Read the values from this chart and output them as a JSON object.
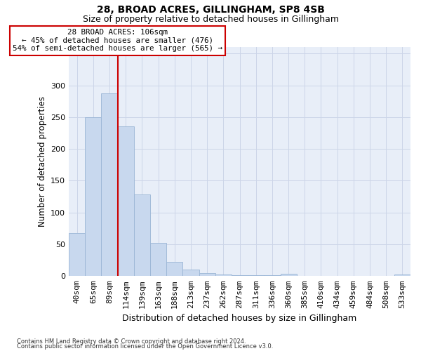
{
  "title1": "28, BROAD ACRES, GILLINGHAM, SP8 4SB",
  "title2": "Size of property relative to detached houses in Gillingham",
  "xlabel": "Distribution of detached houses by size in Gillingham",
  "ylabel": "Number of detached properties",
  "bar_values": [
    68,
    250,
    287,
    235,
    128,
    52,
    22,
    10,
    5,
    3,
    1,
    1,
    1,
    4,
    0,
    0,
    0,
    0,
    0,
    0,
    3
  ],
  "bar_labels": [
    "40sqm",
    "65sqm",
    "89sqm",
    "114sqm",
    "139sqm",
    "163sqm",
    "188sqm",
    "213sqm",
    "237sqm",
    "262sqm",
    "287sqm",
    "311sqm",
    "336sqm",
    "360sqm",
    "385sqm",
    "410sqm",
    "434sqm",
    "459sqm",
    "484sqm",
    "508sqm",
    "533sqm"
  ],
  "bar_color": "#c8d8ee",
  "bar_edge_color": "#9ab5d5",
  "grid_color": "#ccd5e8",
  "bg_color": "#e8eef8",
  "red_line_x": 2.5,
  "annotation_text": "28 BROAD ACRES: 106sqm\n← 45% of detached houses are smaller (476)\n54% of semi-detached houses are larger (565) →",
  "annotation_box_facecolor": "#ffffff",
  "annotation_box_edgecolor": "#cc0000",
  "ylim": [
    0,
    360
  ],
  "yticks": [
    0,
    50,
    100,
    150,
    200,
    250,
    300,
    350
  ],
  "footer1": "Contains HM Land Registry data © Crown copyright and database right 2024.",
  "footer2": "Contains public sector information licensed under the Open Government Licence v3.0.",
  "title1_fontsize": 10,
  "title2_fontsize": 9,
  "tick_fontsize": 8,
  "ylabel_fontsize": 8.5,
  "xlabel_fontsize": 9
}
